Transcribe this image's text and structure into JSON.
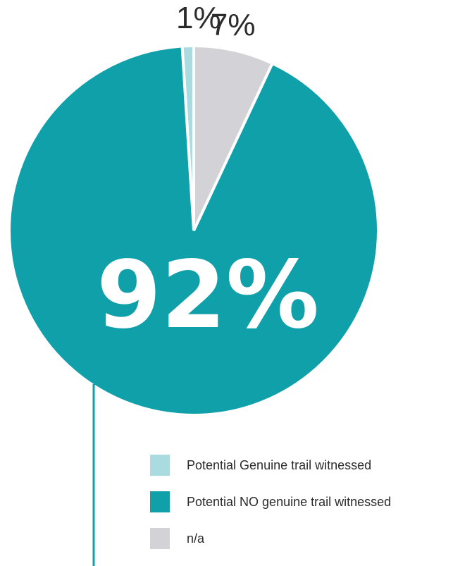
{
  "chart_data": {
    "type": "pie",
    "slices": [
      {
        "label": "Potential Genuine trail witnessed",
        "value": 1,
        "display": "1%",
        "color": "#a9dbe0"
      },
      {
        "label": "Potential NO genuine trail witnessed",
        "value": 92,
        "display": "92%",
        "color": "#0fa0aa"
      },
      {
        "label": "n/a",
        "value": 7,
        "display": "7%",
        "color": "#d3d3d7"
      }
    ],
    "legend_placement": "bottom-right",
    "title": ""
  }
}
